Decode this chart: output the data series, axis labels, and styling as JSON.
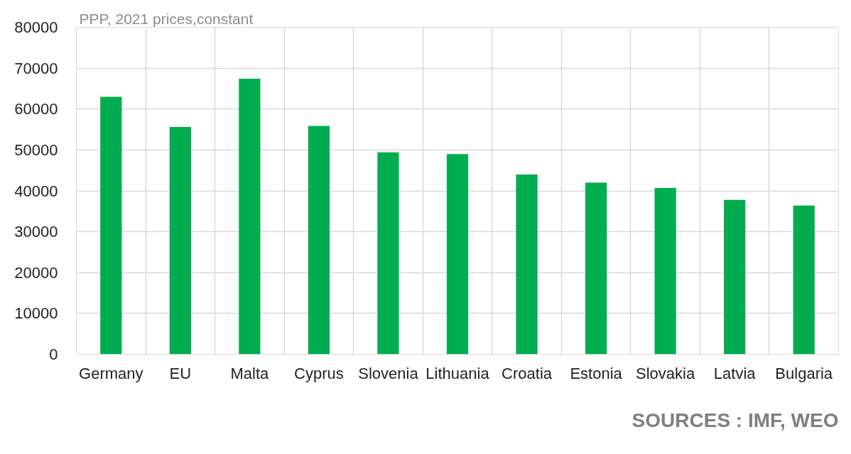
{
  "chart_data": {
    "type": "bar",
    "subtitle": "PPP, 2021 prices,constant",
    "categories": [
      "Germany",
      "EU",
      "Malta",
      "Cyprus",
      "Slovenia",
      "Lithuania",
      "Croatia",
      "Estonia",
      "Slovakia",
      "Latvia",
      "Bulgaria"
    ],
    "values": [
      63000,
      55600,
      67400,
      55900,
      49400,
      49000,
      44000,
      42000,
      40700,
      37800,
      36400
    ],
    "color": "#00ad4e",
    "ylim": [
      0,
      80000
    ],
    "yticks": [
      0,
      10000,
      20000,
      30000,
      40000,
      50000,
      60000,
      70000,
      80000
    ],
    "grid": true,
    "annotations": [
      "SOURCES : IMF, WEO"
    ]
  }
}
